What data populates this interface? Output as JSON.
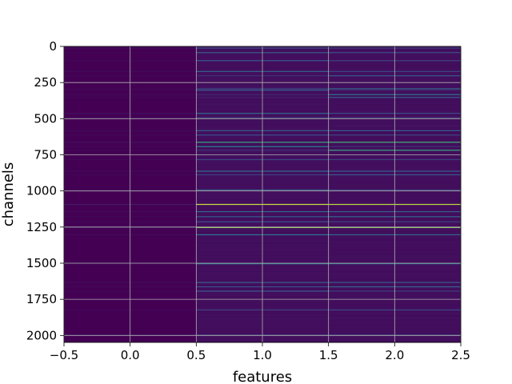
{
  "chart_data": {
    "type": "heatmap",
    "title": "",
    "xlabel": "features",
    "ylabel": "channels",
    "xlim": [
      -0.5,
      2.5
    ],
    "ylim": [
      2048,
      0
    ],
    "y_inverted": true,
    "columns": [
      0,
      1,
      2
    ],
    "rows": 2048,
    "colormap": "viridis",
    "grid": true,
    "x_ticks": [
      -0.5,
      0.0,
      0.5,
      1.0,
      1.5,
      2.0,
      2.5
    ],
    "x_tick_labels": [
      "−0.5",
      "0.0",
      "0.5",
      "1.0",
      "1.5",
      "2.0",
      "2.5"
    ],
    "y_ticks": [
      0,
      250,
      500,
      750,
      1000,
      1250,
      1500,
      1750,
      2000
    ],
    "y_tick_labels": [
      "0",
      "250",
      "500",
      "750",
      "1000",
      "1250",
      "1500",
      "1750",
      "2000"
    ],
    "highlights": [
      {
        "channel": 8,
        "col_values": [
          0.05,
          0.25,
          0.2
        ]
      },
      {
        "channel": 40,
        "col_values": [
          0.02,
          0.3,
          0.25
        ]
      },
      {
        "channel": 95,
        "col_values": [
          0.02,
          0.28,
          0.2
        ]
      },
      {
        "channel": 170,
        "col_values": [
          0.03,
          0.32,
          0.22
        ]
      },
      {
        "channel": 200,
        "col_values": [
          0.02,
          0.15,
          0.28
        ]
      },
      {
        "channel": 290,
        "col_values": [
          0.02,
          0.22,
          0.35
        ]
      },
      {
        "channel": 300,
        "col_values": [
          0.02,
          0.3,
          0.12
        ]
      },
      {
        "channel": 330,
        "col_values": [
          0.03,
          0.12,
          0.4
        ]
      },
      {
        "channel": 350,
        "col_values": [
          0.02,
          0.1,
          0.3
        ]
      },
      {
        "channel": 460,
        "col_values": [
          0.04,
          0.35,
          0.25
        ]
      },
      {
        "channel": 490,
        "col_values": [
          0.02,
          0.2,
          0.18
        ]
      },
      {
        "channel": 580,
        "col_values": [
          0.03,
          0.3,
          0.3
        ]
      },
      {
        "channel": 610,
        "col_values": [
          0.02,
          0.25,
          0.22
        ]
      },
      {
        "channel": 660,
        "col_values": [
          0.05,
          0.6,
          0.65
        ]
      },
      {
        "channel": 690,
        "col_values": [
          0.02,
          0.45,
          0.15
        ]
      },
      {
        "channel": 715,
        "col_values": [
          0.02,
          0.15,
          0.6
        ]
      },
      {
        "channel": 780,
        "col_values": [
          0.02,
          0.22,
          0.2
        ]
      },
      {
        "channel": 860,
        "col_values": [
          0.03,
          0.35,
          0.3
        ]
      },
      {
        "channel": 885,
        "col_values": [
          0.02,
          0.2,
          0.28
        ]
      },
      {
        "channel": 990,
        "col_values": [
          0.03,
          0.3,
          0.22
        ]
      },
      {
        "channel": 1090,
        "col_values": [
          0.08,
          0.92,
          0.9
        ]
      },
      {
        "channel": 1140,
        "col_values": [
          0.03,
          0.35,
          0.3
        ]
      },
      {
        "channel": 1175,
        "col_values": [
          0.02,
          0.3,
          0.35
        ]
      },
      {
        "channel": 1210,
        "col_values": [
          0.02,
          0.25,
          0.2
        ]
      },
      {
        "channel": 1250,
        "col_values": [
          0.08,
          0.82,
          0.8
        ]
      },
      {
        "channel": 1300,
        "col_values": [
          0.03,
          0.4,
          0.35
        ]
      },
      {
        "channel": 1500,
        "col_values": [
          0.05,
          0.45,
          0.42
        ]
      },
      {
        "channel": 1630,
        "col_values": [
          0.03,
          0.3,
          0.3
        ]
      },
      {
        "channel": 1660,
        "col_values": [
          0.02,
          0.25,
          0.32
        ]
      },
      {
        "channel": 1690,
        "col_values": [
          0.02,
          0.28,
          0.2
        ]
      },
      {
        "channel": 1820,
        "col_values": [
          0.02,
          0.2,
          0.22
        ]
      },
      {
        "channel": 1995,
        "col_values": [
          0.1,
          0.3,
          0.3
        ]
      }
    ]
  },
  "colors": {
    "cmap_low": "#440154",
    "cmap_mid": "#21918c",
    "cmap_high": "#fde725",
    "grid": "#b0b0b0"
  }
}
